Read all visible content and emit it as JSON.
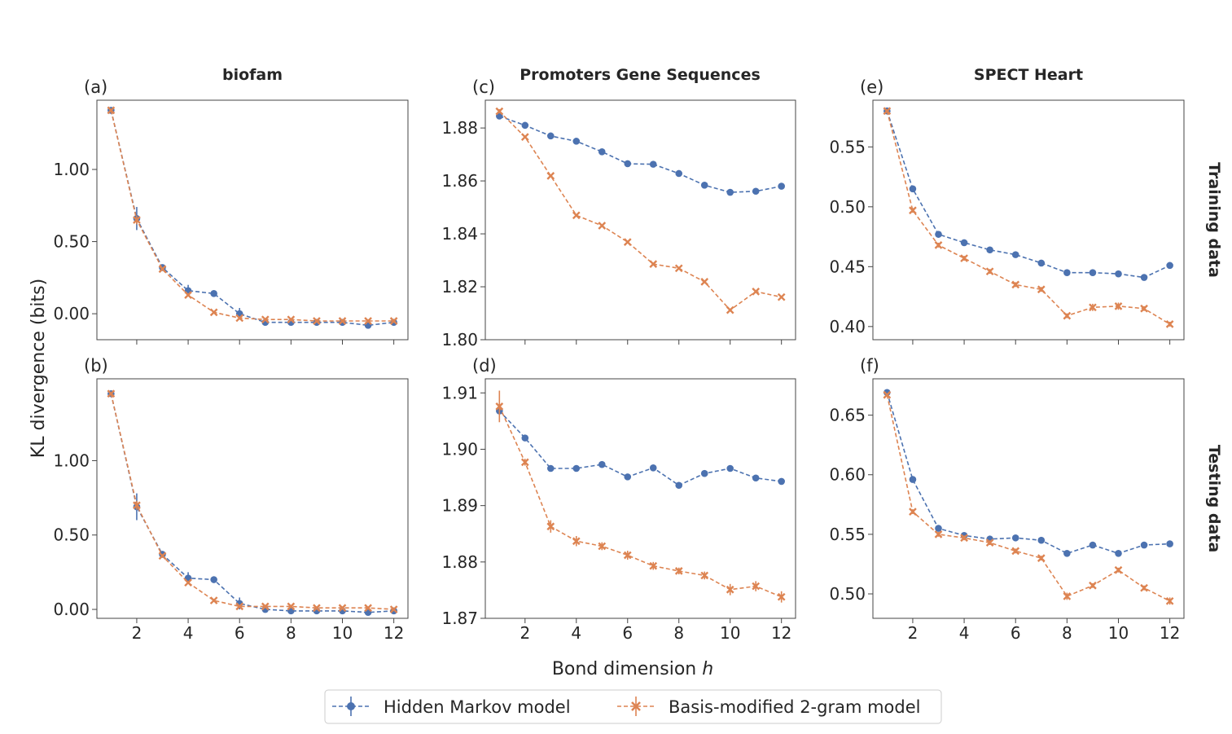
{
  "figure": {
    "xlabel": "Bond dimension",
    "xlabel_var": "h",
    "ylabel": "KL divergence (bits)",
    "columns": [
      "biofam",
      "Promoters Gene Sequences",
      "SPECT Heart"
    ],
    "rows": [
      "Training data",
      "Testing data"
    ],
    "legend": {
      "placement": "bottom-center",
      "entries": [
        {
          "label": "Hidden Markov model",
          "color": "#4c72b0",
          "marker": "circle"
        },
        {
          "label": "Basis-modified 2-gram model",
          "color": "#dd8452",
          "marker": "x"
        }
      ]
    }
  },
  "chart_data": [
    {
      "type": "line",
      "panel": "(a)",
      "column": "biofam",
      "row": "Training data",
      "x": [
        1,
        2,
        3,
        4,
        5,
        6,
        7,
        8,
        9,
        10,
        11,
        12
      ],
      "xlim": [
        0.45,
        12.55
      ],
      "xticks": [
        2,
        4,
        6,
        8,
        10,
        12
      ],
      "ylim": [
        -0.18,
        1.48
      ],
      "yticks": [
        0.0,
        0.5,
        1.0
      ],
      "yticklabels": [
        "0.00",
        "0.50",
        "1.00"
      ],
      "series": [
        {
          "name": "Hidden Markov model",
          "values": [
            1.41,
            0.66,
            0.32,
            0.16,
            0.14,
            0.0,
            -0.06,
            -0.06,
            -0.06,
            -0.06,
            -0.08,
            -0.06
          ],
          "err": [
            0.01,
            0.08,
            0.02,
            0.04,
            0.01,
            0.04,
            0.01,
            0.01,
            0.01,
            0.01,
            0.01,
            0.01
          ]
        },
        {
          "name": "Basis-modified 2-gram model",
          "values": [
            1.41,
            0.65,
            0.31,
            0.13,
            0.01,
            -0.03,
            -0.04,
            -0.04,
            -0.05,
            -0.05,
            -0.05,
            -0.05
          ],
          "err": [
            0.01,
            0.03,
            0.01,
            0.01,
            0.01,
            0.01,
            0.01,
            0.01,
            0.01,
            0.01,
            0.01,
            0.01
          ]
        }
      ]
    },
    {
      "type": "line",
      "panel": "(c)",
      "column": "Promoters Gene Sequences",
      "row": "Training data",
      "x": [
        1,
        2,
        3,
        4,
        5,
        6,
        7,
        8,
        9,
        10,
        11,
        12
      ],
      "xlim": [
        0.45,
        12.55
      ],
      "xticks": [
        2,
        4,
        6,
        8,
        10,
        12
      ],
      "ylim": [
        1.8,
        1.8905
      ],
      "yticks": [
        1.8,
        1.82,
        1.84,
        1.86,
        1.88
      ],
      "yticklabels": [
        "1.80",
        "1.82",
        "1.84",
        "1.86",
        "1.88"
      ],
      "series": [
        {
          "name": "Hidden Markov model",
          "values": [
            1.8845,
            1.881,
            1.877,
            1.875,
            1.871,
            1.8665,
            1.8663,
            1.8628,
            1.8584,
            1.8557,
            1.8561,
            1.858
          ],
          "err": [
            0.0003,
            0.0003,
            0.0003,
            0.0003,
            0.0003,
            0.0003,
            0.0003,
            0.0003,
            0.0003,
            0.0003,
            0.0003,
            0.0003
          ]
        },
        {
          "name": "Basis-modified 2-gram model",
          "values": [
            1.8863,
            1.8766,
            1.8619,
            1.847,
            1.8431,
            1.8369,
            1.8286,
            1.827,
            1.8219,
            1.8112,
            1.8182,
            1.8161
          ],
          "err": [
            0.0008,
            0.0004,
            0.0004,
            0.0004,
            0.0004,
            0.0004,
            0.0004,
            0.0004,
            0.0004,
            0.0004,
            0.0004,
            0.0004
          ]
        }
      ]
    },
    {
      "type": "line",
      "panel": "(e)",
      "column": "SPECT Heart",
      "row": "Training data",
      "x": [
        1,
        2,
        3,
        4,
        5,
        6,
        7,
        8,
        9,
        10,
        11,
        12
      ],
      "xlim": [
        0.45,
        12.55
      ],
      "xticks": [
        2,
        4,
        6,
        8,
        10,
        12
      ],
      "ylim": [
        0.389,
        0.589
      ],
      "yticks": [
        0.4,
        0.45,
        0.5,
        0.55
      ],
      "yticklabels": [
        "0.40",
        "0.45",
        "0.50",
        "0.55"
      ],
      "series": [
        {
          "name": "Hidden Markov model",
          "values": [
            0.58,
            0.515,
            0.477,
            0.47,
            0.464,
            0.46,
            0.453,
            0.445,
            0.445,
            0.444,
            0.441,
            0.451
          ],
          "err": [
            0.001,
            0.001,
            0.001,
            0.001,
            0.001,
            0.001,
            0.001,
            0.001,
            0.001,
            0.001,
            0.001,
            0.001
          ]
        },
        {
          "name": "Basis-modified 2-gram model",
          "values": [
            0.58,
            0.497,
            0.468,
            0.457,
            0.446,
            0.435,
            0.431,
            0.409,
            0.416,
            0.417,
            0.415,
            0.402
          ],
          "err": [
            0.001,
            0.002,
            0.002,
            0.002,
            0.002,
            0.002,
            0.002,
            0.002,
            0.003,
            0.003,
            0.002,
            0.002
          ]
        }
      ]
    },
    {
      "type": "line",
      "panel": "(b)",
      "column": "biofam",
      "row": "Testing data",
      "x": [
        1,
        2,
        3,
        4,
        5,
        6,
        7,
        8,
        9,
        10,
        11,
        12
      ],
      "xlim": [
        0.45,
        12.55
      ],
      "xticks": [
        2,
        4,
        6,
        8,
        10,
        12
      ],
      "ylim": [
        -0.06,
        1.55
      ],
      "yticks": [
        0.0,
        0.5,
        1.0
      ],
      "yticklabels": [
        "0.00",
        "0.50",
        "1.00"
      ],
      "series": [
        {
          "name": "Hidden Markov model",
          "values": [
            1.45,
            0.69,
            0.37,
            0.21,
            0.2,
            0.04,
            0.0,
            -0.01,
            -0.01,
            -0.01,
            -0.02,
            -0.01
          ],
          "err": [
            0.01,
            0.09,
            0.02,
            0.04,
            0.01,
            0.04,
            0.01,
            0.01,
            0.01,
            0.01,
            0.01,
            0.01
          ]
        },
        {
          "name": "Basis-modified 2-gram model",
          "values": [
            1.45,
            0.7,
            0.36,
            0.18,
            0.06,
            0.02,
            0.02,
            0.02,
            0.01,
            0.01,
            0.01,
            0.0
          ],
          "err": [
            0.01,
            0.03,
            0.01,
            0.01,
            0.01,
            0.01,
            0.01,
            0.01,
            0.01,
            0.01,
            0.01,
            0.01
          ]
        }
      ]
    },
    {
      "type": "line",
      "panel": "(d)",
      "column": "Promoters Gene Sequences",
      "row": "Testing data",
      "x": [
        1,
        2,
        3,
        4,
        5,
        6,
        7,
        8,
        9,
        10,
        11,
        12
      ],
      "xlim": [
        0.45,
        12.55
      ],
      "xticks": [
        2,
        4,
        6,
        8,
        10,
        12
      ],
      "ylim": [
        1.87,
        1.9125
      ],
      "yticks": [
        1.87,
        1.88,
        1.89,
        1.9,
        1.91
      ],
      "yticklabels": [
        "1.87",
        "1.88",
        "1.89",
        "1.90",
        "1.91"
      ],
      "series": [
        {
          "name": "Hidden Markov model",
          "values": [
            1.9068,
            1.902,
            1.8966,
            1.8966,
            1.8973,
            1.8951,
            1.8967,
            1.8936,
            1.8957,
            1.8966,
            1.8949,
            1.8943
          ],
          "err": [
            0.0003,
            0.0003,
            0.0003,
            0.0003,
            0.0003,
            0.0003,
            0.0003,
            0.0003,
            0.0003,
            0.0003,
            0.0003,
            0.0003
          ]
        },
        {
          "name": "Basis-modified 2-gram model",
          "values": [
            1.9076,
            1.8977,
            1.8863,
            1.8837,
            1.8828,
            1.8812,
            1.8793,
            1.8784,
            1.8776,
            1.8751,
            1.8757,
            1.8738
          ],
          "err": [
            0.0028,
            0.0006,
            0.0011,
            0.0009,
            0.0007,
            0.0008,
            0.0007,
            0.0006,
            0.0007,
            0.001,
            0.0009,
            0.001
          ]
        }
      ]
    },
    {
      "type": "line",
      "panel": "(f)",
      "column": "SPECT Heart",
      "row": "Testing data",
      "x": [
        1,
        2,
        3,
        4,
        5,
        6,
        7,
        8,
        9,
        10,
        11,
        12
      ],
      "xlim": [
        0.45,
        12.55
      ],
      "xticks": [
        2,
        4,
        6,
        8,
        10,
        12
      ],
      "ylim": [
        0.4795,
        0.6805
      ],
      "yticks": [
        0.5,
        0.55,
        0.6,
        0.65
      ],
      "yticklabels": [
        "0.50",
        "0.55",
        "0.60",
        "0.65"
      ],
      "series": [
        {
          "name": "Hidden Markov model",
          "values": [
            0.669,
            0.596,
            0.555,
            0.549,
            0.546,
            0.547,
            0.545,
            0.534,
            0.541,
            0.534,
            0.541,
            0.542
          ],
          "err": [
            0.001,
            0.001,
            0.001,
            0.001,
            0.001,
            0.001,
            0.001,
            0.001,
            0.001,
            0.001,
            0.001,
            0.001
          ]
        },
        {
          "name": "Basis-modified 2-gram model",
          "values": [
            0.667,
            0.569,
            0.55,
            0.547,
            0.543,
            0.536,
            0.53,
            0.498,
            0.507,
            0.52,
            0.505,
            0.494
          ],
          "err": [
            0.001,
            0.002,
            0.002,
            0.002,
            0.002,
            0.002,
            0.002,
            0.003,
            0.002,
            0.002,
            0.002,
            0.003
          ]
        }
      ]
    }
  ]
}
